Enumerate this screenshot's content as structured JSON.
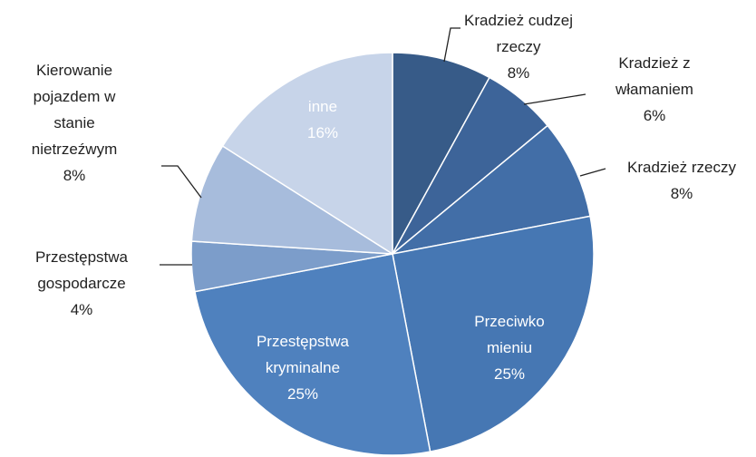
{
  "chart_data": {
    "type": "pie",
    "categories": [
      "Kradzież cudzej rzeczy",
      "Kradzież z włamaniem",
      "Kradzież rzeczy",
      "Przeciwko mieniu",
      "Przestępstwa kryminalne",
      "Przestępstwa gospodarcze",
      "Kierowanie pojazdem w stanie nietrzeźwym",
      "inne"
    ],
    "values": [
      8,
      6,
      8,
      25,
      25,
      4,
      8,
      16
    ],
    "value_labels": [
      "8%",
      "6%",
      "8%",
      "25%",
      "25%",
      "4%",
      "8%",
      "16%"
    ],
    "colors": [
      "#375b88",
      "#3d6499",
      "#426ea7",
      "#4677b3",
      "#4f81be",
      "#7c9dca",
      "#a7bcdc",
      "#c7d4e9"
    ]
  }
}
